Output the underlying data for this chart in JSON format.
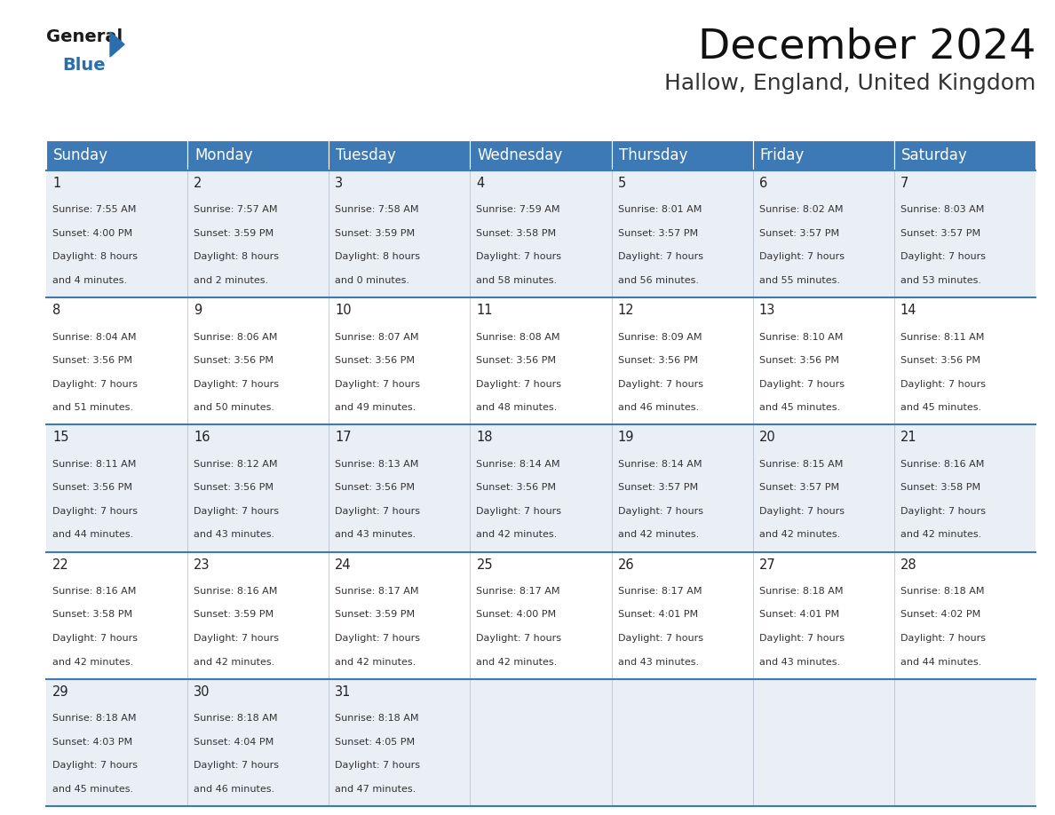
{
  "title": "December 2024",
  "subtitle": "Hallow, England, United Kingdom",
  "header_bg_color": "#3d7ab5",
  "header_text_color": "#ffffff",
  "day_names": [
    "Sunday",
    "Monday",
    "Tuesday",
    "Wednesday",
    "Thursday",
    "Friday",
    "Saturday"
  ],
  "days": [
    {
      "day": 1,
      "col": 0,
      "row": 0,
      "sunrise": "7:55 AM",
      "sunset": "4:00 PM",
      "daylight": "8 hours",
      "daylight2": "and 4 minutes."
    },
    {
      "day": 2,
      "col": 1,
      "row": 0,
      "sunrise": "7:57 AM",
      "sunset": "3:59 PM",
      "daylight": "8 hours",
      "daylight2": "and 2 minutes."
    },
    {
      "day": 3,
      "col": 2,
      "row": 0,
      "sunrise": "7:58 AM",
      "sunset": "3:59 PM",
      "daylight": "8 hours",
      "daylight2": "and 0 minutes."
    },
    {
      "day": 4,
      "col": 3,
      "row": 0,
      "sunrise": "7:59 AM",
      "sunset": "3:58 PM",
      "daylight": "7 hours",
      "daylight2": "and 58 minutes."
    },
    {
      "day": 5,
      "col": 4,
      "row": 0,
      "sunrise": "8:01 AM",
      "sunset": "3:57 PM",
      "daylight": "7 hours",
      "daylight2": "and 56 minutes."
    },
    {
      "day": 6,
      "col": 5,
      "row": 0,
      "sunrise": "8:02 AM",
      "sunset": "3:57 PM",
      "daylight": "7 hours",
      "daylight2": "and 55 minutes."
    },
    {
      "day": 7,
      "col": 6,
      "row": 0,
      "sunrise": "8:03 AM",
      "sunset": "3:57 PM",
      "daylight": "7 hours",
      "daylight2": "and 53 minutes."
    },
    {
      "day": 8,
      "col": 0,
      "row": 1,
      "sunrise": "8:04 AM",
      "sunset": "3:56 PM",
      "daylight": "7 hours",
      "daylight2": "and 51 minutes."
    },
    {
      "day": 9,
      "col": 1,
      "row": 1,
      "sunrise": "8:06 AM",
      "sunset": "3:56 PM",
      "daylight": "7 hours",
      "daylight2": "and 50 minutes."
    },
    {
      "day": 10,
      "col": 2,
      "row": 1,
      "sunrise": "8:07 AM",
      "sunset": "3:56 PM",
      "daylight": "7 hours",
      "daylight2": "and 49 minutes."
    },
    {
      "day": 11,
      "col": 3,
      "row": 1,
      "sunrise": "8:08 AM",
      "sunset": "3:56 PM",
      "daylight": "7 hours",
      "daylight2": "and 48 minutes."
    },
    {
      "day": 12,
      "col": 4,
      "row": 1,
      "sunrise": "8:09 AM",
      "sunset": "3:56 PM",
      "daylight": "7 hours",
      "daylight2": "and 46 minutes."
    },
    {
      "day": 13,
      "col": 5,
      "row": 1,
      "sunrise": "8:10 AM",
      "sunset": "3:56 PM",
      "daylight": "7 hours",
      "daylight2": "and 45 minutes."
    },
    {
      "day": 14,
      "col": 6,
      "row": 1,
      "sunrise": "8:11 AM",
      "sunset": "3:56 PM",
      "daylight": "7 hours",
      "daylight2": "and 45 minutes."
    },
    {
      "day": 15,
      "col": 0,
      "row": 2,
      "sunrise": "8:11 AM",
      "sunset": "3:56 PM",
      "daylight": "7 hours",
      "daylight2": "and 44 minutes."
    },
    {
      "day": 16,
      "col": 1,
      "row": 2,
      "sunrise": "8:12 AM",
      "sunset": "3:56 PM",
      "daylight": "7 hours",
      "daylight2": "and 43 minutes."
    },
    {
      "day": 17,
      "col": 2,
      "row": 2,
      "sunrise": "8:13 AM",
      "sunset": "3:56 PM",
      "daylight": "7 hours",
      "daylight2": "and 43 minutes."
    },
    {
      "day": 18,
      "col": 3,
      "row": 2,
      "sunrise": "8:14 AM",
      "sunset": "3:56 PM",
      "daylight": "7 hours",
      "daylight2": "and 42 minutes."
    },
    {
      "day": 19,
      "col": 4,
      "row": 2,
      "sunrise": "8:14 AM",
      "sunset": "3:57 PM",
      "daylight": "7 hours",
      "daylight2": "and 42 minutes."
    },
    {
      "day": 20,
      "col": 5,
      "row": 2,
      "sunrise": "8:15 AM",
      "sunset": "3:57 PM",
      "daylight": "7 hours",
      "daylight2": "and 42 minutes."
    },
    {
      "day": 21,
      "col": 6,
      "row": 2,
      "sunrise": "8:16 AM",
      "sunset": "3:58 PM",
      "daylight": "7 hours",
      "daylight2": "and 42 minutes."
    },
    {
      "day": 22,
      "col": 0,
      "row": 3,
      "sunrise": "8:16 AM",
      "sunset": "3:58 PM",
      "daylight": "7 hours",
      "daylight2": "and 42 minutes."
    },
    {
      "day": 23,
      "col": 1,
      "row": 3,
      "sunrise": "8:16 AM",
      "sunset": "3:59 PM",
      "daylight": "7 hours",
      "daylight2": "and 42 minutes."
    },
    {
      "day": 24,
      "col": 2,
      "row": 3,
      "sunrise": "8:17 AM",
      "sunset": "3:59 PM",
      "daylight": "7 hours",
      "daylight2": "and 42 minutes."
    },
    {
      "day": 25,
      "col": 3,
      "row": 3,
      "sunrise": "8:17 AM",
      "sunset": "4:00 PM",
      "daylight": "7 hours",
      "daylight2": "and 42 minutes."
    },
    {
      "day": 26,
      "col": 4,
      "row": 3,
      "sunrise": "8:17 AM",
      "sunset": "4:01 PM",
      "daylight": "7 hours",
      "daylight2": "and 43 minutes."
    },
    {
      "day": 27,
      "col": 5,
      "row": 3,
      "sunrise": "8:18 AM",
      "sunset": "4:01 PM",
      "daylight": "7 hours",
      "daylight2": "and 43 minutes."
    },
    {
      "day": 28,
      "col": 6,
      "row": 3,
      "sunrise": "8:18 AM",
      "sunset": "4:02 PM",
      "daylight": "7 hours",
      "daylight2": "and 44 minutes."
    },
    {
      "day": 29,
      "col": 0,
      "row": 4,
      "sunrise": "8:18 AM",
      "sunset": "4:03 PM",
      "daylight": "7 hours",
      "daylight2": "and 45 minutes."
    },
    {
      "day": 30,
      "col": 1,
      "row": 4,
      "sunrise": "8:18 AM",
      "sunset": "4:04 PM",
      "daylight": "7 hours",
      "daylight2": "and 46 minutes."
    },
    {
      "day": 31,
      "col": 2,
      "row": 4,
      "sunrise": "8:18 AM",
      "sunset": "4:05 PM",
      "daylight": "7 hours",
      "daylight2": "and 47 minutes."
    }
  ],
  "num_rows": 5,
  "num_cols": 7,
  "logo_color_general": "#1a1a1a",
  "logo_color_blue": "#2a6ead",
  "title_fontsize": 34,
  "subtitle_fontsize": 18,
  "header_fontsize": 12,
  "day_num_fontsize": 10.5,
  "cell_text_fontsize": 8,
  "divider_color": "#3d7ab5",
  "bg_color": "#ffffff",
  "alt_row_color": "#eaeff5",
  "cell_border_color": "#b0b8c8"
}
